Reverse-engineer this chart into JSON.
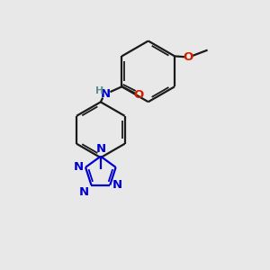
{
  "bg_color": "#e8e8e8",
  "bond_color_black": "#1a1a1a",
  "bond_color_blue": "#0000cc",
  "bond_color_red": "#cc2200",
  "atom_color_blue": "#0000cc",
  "atom_color_red": "#cc2200",
  "atom_color_teal": "#5a9090",
  "figsize": [
    3.0,
    3.0
  ],
  "dpi": 100,
  "xlim": [
    0,
    10
  ],
  "ylim": [
    0,
    10
  ]
}
